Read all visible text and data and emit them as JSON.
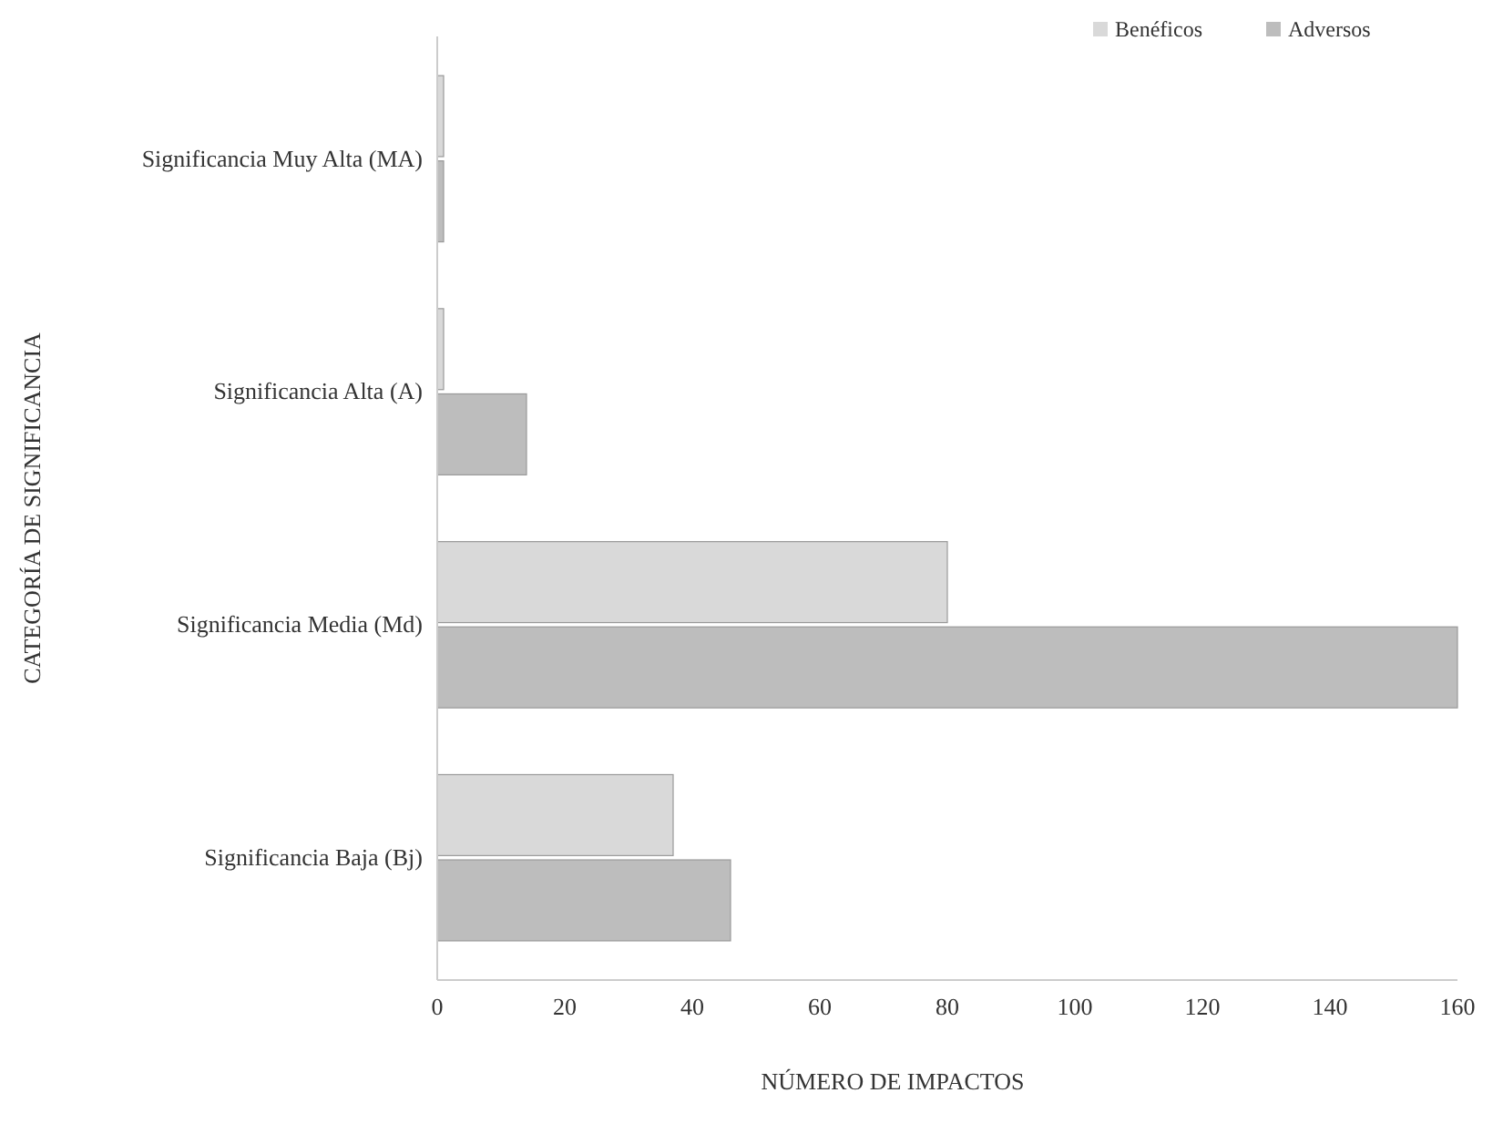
{
  "chart_data": {
    "type": "bar",
    "orientation": "horizontal",
    "xlabel": "NÚMERO DE IMPACTOS",
    "ylabel": "CATEGORÍA DE SIGNIFICANCIA",
    "categories": [
      "Significancia Muy Alta (MA)",
      "Significancia Alta (A)",
      "Significancia Media (Md)",
      "Significancia Baja (Bj)"
    ],
    "series": [
      {
        "name": "Benéficos",
        "color": "#d9d9d9",
        "values": [
          1,
          1,
          80,
          37
        ]
      },
      {
        "name": "Adversos",
        "color": "#bdbdbd",
        "values": [
          1,
          14,
          160,
          46
        ]
      }
    ],
    "xlim": [
      0,
      160
    ],
    "xticks": [
      0,
      20,
      40,
      60,
      80,
      100,
      120,
      140,
      160
    ],
    "grid": false,
    "legend": "top right"
  }
}
